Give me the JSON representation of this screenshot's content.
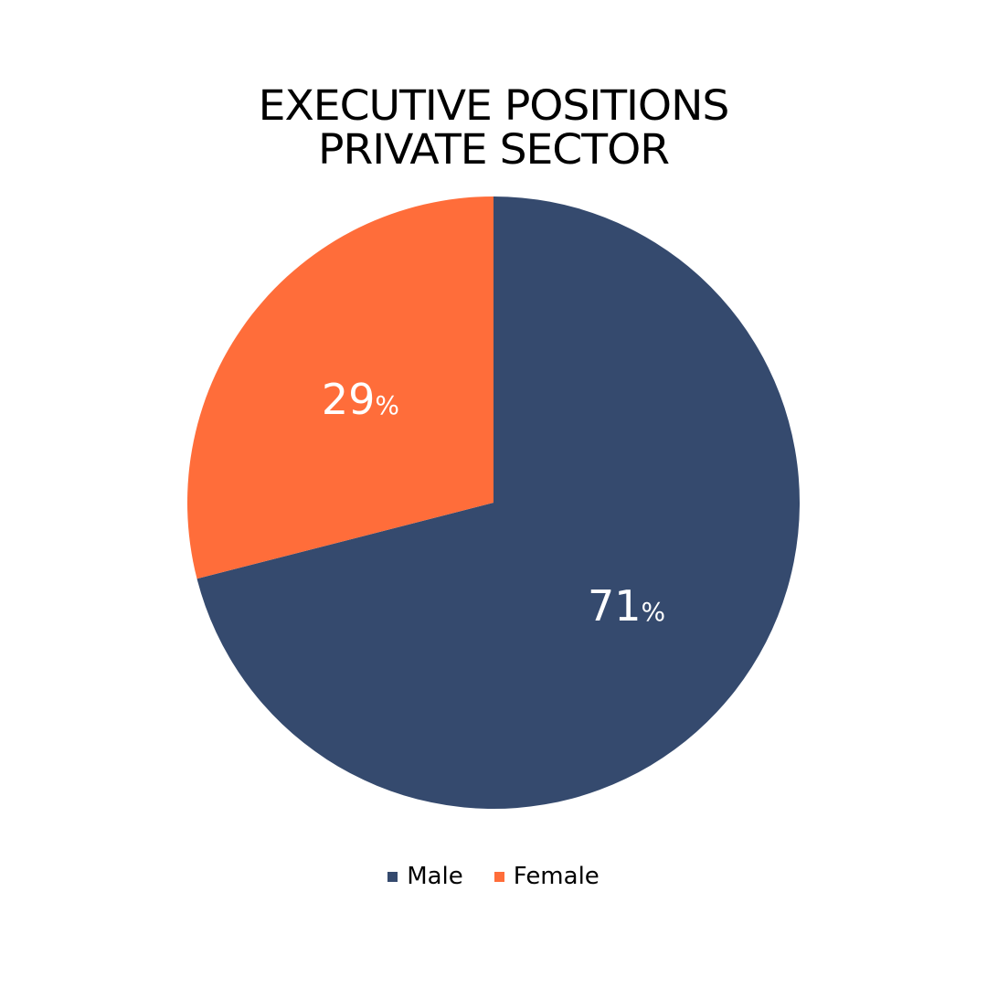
{
  "title": {
    "line1": "EXECUTIVE POSITIONS",
    "line2": "PRIVATE SECTOR"
  },
  "colors": {
    "male": "#354a6e",
    "female": "#ff6d3a",
    "text": "#000000",
    "label": "#ffffff"
  },
  "chart_data": {
    "type": "pie",
    "title": "EXECUTIVE POSITIONS PRIVATE SECTOR",
    "legend_placement": "bottom",
    "start": "top",
    "direction": "clockwise",
    "slices": [
      {
        "name": "Male",
        "value": 71,
        "label": "71%",
        "color": "#354a6e"
      },
      {
        "name": "Female",
        "value": 29,
        "label": "29%",
        "color": "#ff6d3a"
      }
    ]
  },
  "legend": {
    "items": [
      {
        "label": "Male",
        "color": "#354a6e"
      },
      {
        "label": "Female",
        "color": "#ff6d3a"
      }
    ]
  }
}
